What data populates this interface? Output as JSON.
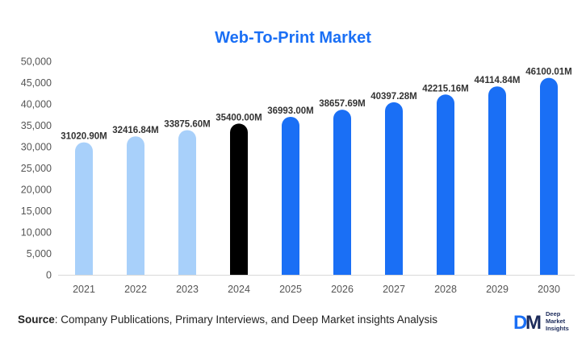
{
  "title": "Web-To-Print Market",
  "source": {
    "label": "Source",
    "text": ": Company Publications, Primary Interviews, and Deep Market insights Analysis"
  },
  "logo": {
    "mark": "DM",
    "line1": "Deep",
    "line2": "Market",
    "line3": "Insights"
  },
  "colors": {
    "title": "#1a6ff5",
    "historical": "#a8d0fa",
    "base_year": "#000000",
    "forecast": "#1a6ff5"
  },
  "chart_data": {
    "type": "bar",
    "title": "Web-To-Print Market",
    "categories": [
      "2021",
      "2022",
      "2023",
      "2024",
      "2025",
      "2026",
      "2027",
      "2028",
      "2029",
      "2030"
    ],
    "values": [
      31020.9,
      32416.84,
      33875.6,
      35400.0,
      36993.0,
      38657.69,
      40397.28,
      42215.16,
      44114.84,
      46100.01
    ],
    "data_labels": [
      "31020.90M",
      "32416.84M",
      "33875.60M",
      "35400.00M",
      "36993.00M",
      "38657.69M",
      "40397.28M",
      "42215.16M",
      "44114.84M",
      "46100.01M"
    ],
    "bar_groups": [
      "historical",
      "historical",
      "historical",
      "base_year",
      "forecast",
      "forecast",
      "forecast",
      "forecast",
      "forecast",
      "forecast"
    ],
    "ylim": [
      0,
      50000
    ],
    "yticks": [
      0,
      5000,
      10000,
      15000,
      20000,
      25000,
      30000,
      35000,
      40000,
      45000,
      50000
    ],
    "ytick_labels": [
      "0",
      "5,000",
      "10,000",
      "15,000",
      "20,000",
      "25,000",
      "30,000",
      "35,000",
      "40,000",
      "45,000",
      "50,000"
    ],
    "xlabel": "",
    "ylabel": "",
    "grid": false,
    "legend": false
  }
}
